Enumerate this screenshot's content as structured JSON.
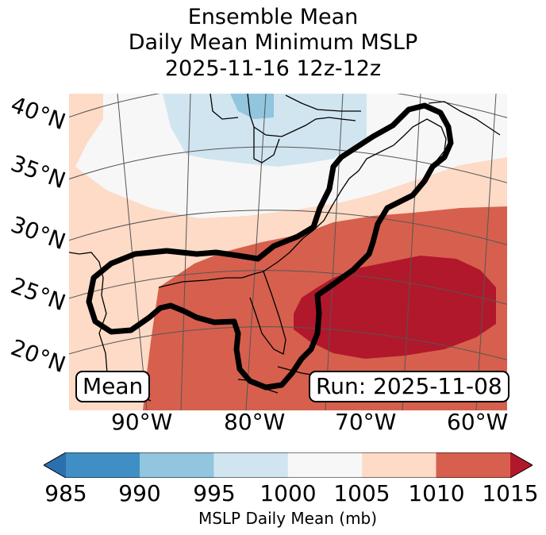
{
  "title": {
    "line1": "Ensemble Mean",
    "line2": "Daily Mean Minimum MSLP",
    "line3": "2025-11-16 12z-12z"
  },
  "latitude_labels": [
    "40°N",
    "35°N",
    "30°N",
    "25°N",
    "20°N"
  ],
  "longitude_labels": [
    "90°W",
    "80°W",
    "70°W",
    "60°W"
  ],
  "mean_label": "Mean",
  "run_label": "Run: 2025-11-08",
  "colorbar": {
    "label": "MSLP Daily Mean (mb)",
    "ticks": [
      "985",
      "990",
      "995",
      "1000",
      "1005",
      "1010",
      "1015"
    ],
    "colors": [
      "#2c6fb0",
      "#3f8fc5",
      "#92c5de",
      "#d1e5f0",
      "#f7f7f7",
      "#fddbc7",
      "#d6604d",
      "#b2182b"
    ]
  }
}
